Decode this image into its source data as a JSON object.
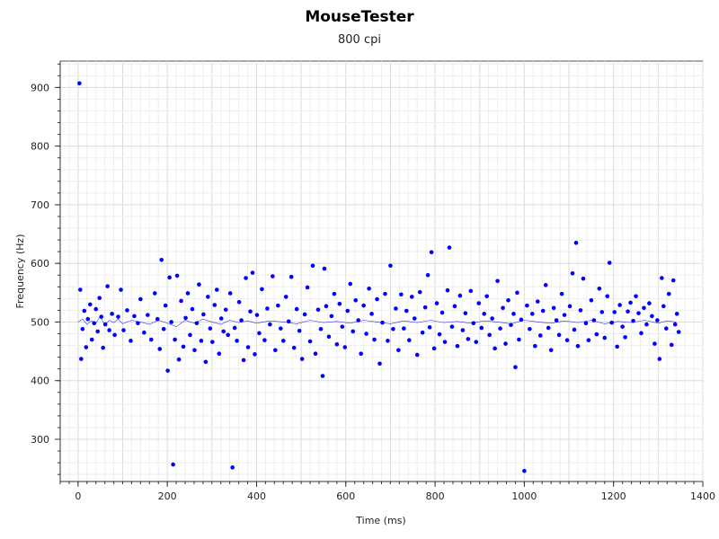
{
  "chart_data": {
    "type": "scatter",
    "title": "MouseTester",
    "subtitle": "800 cpi",
    "xlabel": "Time (ms)",
    "ylabel": "Frequency (Hz)",
    "xlim": [
      -40,
      1400
    ],
    "ylim": [
      228,
      945
    ],
    "xticks": [
      0,
      200,
      400,
      600,
      800,
      1000,
      1200,
      1400
    ],
    "yticks": [
      300,
      400,
      500,
      600,
      700,
      800,
      900
    ],
    "grid": true,
    "legend": "none",
    "series": [
      {
        "color": "#0000ff",
        "marker": "dot",
        "points": [
          [
            3,
            907
          ],
          [
            5,
            555
          ],
          [
            7,
            437
          ],
          [
            10,
            488
          ],
          [
            14,
            519
          ],
          [
            18,
            457
          ],
          [
            22,
            505
          ],
          [
            27,
            530
          ],
          [
            31,
            470
          ],
          [
            36,
            498
          ],
          [
            40,
            522
          ],
          [
            44,
            484
          ],
          [
            48,
            541
          ],
          [
            52,
            509
          ],
          [
            56,
            456
          ],
          [
            61,
            496
          ],
          [
            66,
            561
          ],
          [
            70,
            486
          ],
          [
            76,
            514
          ],
          [
            82,
            478
          ],
          [
            90,
            509
          ],
          [
            96,
            555
          ],
          [
            102,
            486
          ],
          [
            110,
            520
          ],
          [
            118,
            468
          ],
          [
            126,
            510
          ],
          [
            134,
            498
          ],
          [
            140,
            539
          ],
          [
            148,
            482
          ],
          [
            156,
            512
          ],
          [
            164,
            470
          ],
          [
            172,
            549
          ],
          [
            178,
            505
          ],
          [
            183,
            454
          ],
          [
            187,
            606
          ],
          [
            192,
            488
          ],
          [
            196,
            528
          ],
          [
            201,
            417
          ],
          [
            205,
            576
          ],
          [
            209,
            500
          ],
          [
            213,
            257
          ],
          [
            217,
            470
          ],
          [
            222,
            579
          ],
          [
            226,
            436
          ],
          [
            231,
            536
          ],
          [
            236,
            458
          ],
          [
            241,
            507
          ],
          [
            246,
            549
          ],
          [
            251,
            478
          ],
          [
            256,
            522
          ],
          [
            261,
            452
          ],
          [
            266,
            498
          ],
          [
            271,
            564
          ],
          [
            276,
            468
          ],
          [
            281,
            513
          ],
          [
            286,
            432
          ],
          [
            291,
            543
          ],
          [
            296,
            489
          ],
          [
            301,
            466
          ],
          [
            306,
            529
          ],
          [
            311,
            555
          ],
          [
            316,
            446
          ],
          [
            321,
            506
          ],
          [
            326,
            484
          ],
          [
            331,
            521
          ],
          [
            336,
            478
          ],
          [
            341,
            549
          ],
          [
            346,
            252
          ],
          [
            351,
            490
          ],
          [
            356,
            468
          ],
          [
            361,
            534
          ],
          [
            366,
            503
          ],
          [
            371,
            435
          ],
          [
            376,
            575
          ],
          [
            381,
            457
          ],
          [
            386,
            518
          ],
          [
            391,
            584
          ],
          [
            396,
            445
          ],
          [
            401,
            512
          ],
          [
            406,
            481
          ],
          [
            412,
            556
          ],
          [
            418,
            469
          ],
          [
            424,
            523
          ],
          [
            430,
            496
          ],
          [
            436,
            578
          ],
          [
            442,
            452
          ],
          [
            448,
            528
          ],
          [
            454,
            489
          ],
          [
            460,
            468
          ],
          [
            466,
            543
          ],
          [
            472,
            501
          ],
          [
            478,
            577
          ],
          [
            484,
            456
          ],
          [
            490,
            522
          ],
          [
            496,
            485
          ],
          [
            502,
            437
          ],
          [
            508,
            513
          ],
          [
            514,
            559
          ],
          [
            520,
            467
          ],
          [
            526,
            596
          ],
          [
            532,
            446
          ],
          [
            538,
            521
          ],
          [
            544,
            488
          ],
          [
            548,
            408
          ],
          [
            552,
            591
          ],
          [
            556,
            527
          ],
          [
            562,
            475
          ],
          [
            568,
            510
          ],
          [
            574,
            548
          ],
          [
            580,
            462
          ],
          [
            586,
            531
          ],
          [
            592,
            492
          ],
          [
            598,
            457
          ],
          [
            604,
            519
          ],
          [
            610,
            565
          ],
          [
            616,
            484
          ],
          [
            622,
            537
          ],
          [
            628,
            503
          ],
          [
            634,
            446
          ],
          [
            640,
            528
          ],
          [
            646,
            480
          ],
          [
            652,
            557
          ],
          [
            658,
            514
          ],
          [
            664,
            470
          ],
          [
            670,
            539
          ],
          [
            676,
            429
          ],
          [
            682,
            499
          ],
          [
            688,
            548
          ],
          [
            694,
            468
          ],
          [
            700,
            596
          ],
          [
            706,
            488
          ],
          [
            712,
            523
          ],
          [
            718,
            452
          ],
          [
            724,
            547
          ],
          [
            730,
            489
          ],
          [
            736,
            519
          ],
          [
            742,
            469
          ],
          [
            748,
            543
          ],
          [
            754,
            506
          ],
          [
            760,
            444
          ],
          [
            766,
            551
          ],
          [
            772,
            482
          ],
          [
            778,
            525
          ],
          [
            784,
            580
          ],
          [
            788,
            491
          ],
          [
            792,
            619
          ],
          [
            798,
            455
          ],
          [
            804,
            532
          ],
          [
            810,
            479
          ],
          [
            816,
            516
          ],
          [
            822,
            466
          ],
          [
            828,
            554
          ],
          [
            832,
            627
          ],
          [
            838,
            492
          ],
          [
            844,
            527
          ],
          [
            850,
            459
          ],
          [
            856,
            545
          ],
          [
            862,
            486
          ],
          [
            868,
            515
          ],
          [
            874,
            471
          ],
          [
            880,
            553
          ],
          [
            886,
            498
          ],
          [
            892,
            466
          ],
          [
            898,
            532
          ],
          [
            904,
            490
          ],
          [
            910,
            514
          ],
          [
            916,
            544
          ],
          [
            922,
            478
          ],
          [
            928,
            506
          ],
          [
            934,
            455
          ],
          [
            940,
            570
          ],
          [
            946,
            489
          ],
          [
            952,
            524
          ],
          [
            958,
            463
          ],
          [
            964,
            537
          ],
          [
            970,
            495
          ],
          [
            976,
            514
          ],
          [
            980,
            423
          ],
          [
            984,
            550
          ],
          [
            988,
            470
          ],
          [
            993,
            504
          ],
          [
            1000,
            246
          ],
          [
            1006,
            528
          ],
          [
            1012,
            488
          ],
          [
            1018,
            514
          ],
          [
            1024,
            459
          ],
          [
            1030,
            535
          ],
          [
            1036,
            477
          ],
          [
            1042,
            519
          ],
          [
            1048,
            563
          ],
          [
            1054,
            490
          ],
          [
            1060,
            452
          ],
          [
            1066,
            524
          ],
          [
            1072,
            503
          ],
          [
            1078,
            478
          ],
          [
            1084,
            548
          ],
          [
            1090,
            512
          ],
          [
            1096,
            469
          ],
          [
            1102,
            527
          ],
          [
            1108,
            583
          ],
          [
            1112,
            487
          ],
          [
            1116,
            635
          ],
          [
            1120,
            459
          ],
          [
            1126,
            520
          ],
          [
            1132,
            574
          ],
          [
            1138,
            498
          ],
          [
            1144,
            469
          ],
          [
            1150,
            537
          ],
          [
            1156,
            503
          ],
          [
            1162,
            479
          ],
          [
            1168,
            557
          ],
          [
            1174,
            517
          ],
          [
            1180,
            473
          ],
          [
            1186,
            544
          ],
          [
            1191,
            601
          ],
          [
            1196,
            499
          ],
          [
            1202,
            517
          ],
          [
            1208,
            458
          ],
          [
            1214,
            529
          ],
          [
            1220,
            492
          ],
          [
            1226,
            474
          ],
          [
            1232,
            518
          ],
          [
            1238,
            533
          ],
          [
            1244,
            502
          ],
          [
            1250,
            544
          ],
          [
            1256,
            515
          ],
          [
            1262,
            481
          ],
          [
            1268,
            524
          ],
          [
            1274,
            496
          ],
          [
            1280,
            532
          ],
          [
            1286,
            510
          ],
          [
            1292,
            463
          ],
          [
            1298,
            503
          ],
          [
            1303,
            437
          ],
          [
            1308,
            575
          ],
          [
            1312,
            527
          ],
          [
            1318,
            489
          ],
          [
            1324,
            548
          ],
          [
            1330,
            461
          ],
          [
            1334,
            571
          ],
          [
            1338,
            496
          ],
          [
            1342,
            514
          ],
          [
            1346,
            483
          ]
        ]
      },
      {
        "color": "#0000ff",
        "marker": "thin-line",
        "x": [
          0,
          10,
          20,
          30,
          40,
          50,
          60,
          70,
          80,
          90,
          100,
          120,
          140,
          160,
          180,
          200,
          220,
          240,
          260,
          280,
          300,
          320,
          340,
          360,
          380,
          400,
          430,
          460,
          490,
          520,
          550,
          580,
          610,
          640,
          670,
          700,
          730,
          760,
          790,
          820,
          850,
          880,
          910,
          940,
          970,
          1000,
          1030,
          1060,
          1090,
          1120,
          1150,
          1180,
          1210,
          1240,
          1270,
          1300,
          1320,
          1340
        ],
        "y": [
          500,
          505,
          496,
          502,
          498,
          510,
          494,
          503,
          499,
          505,
          497,
          503,
          500,
          496,
          503,
          498,
          492,
          503,
          498,
          505,
          500,
          496,
          503,
          499,
          502,
          498,
          502,
          500,
          497,
          503,
          499,
          501,
          498,
          503,
          500,
          497,
          502,
          499,
          503,
          499,
          501,
          498,
          502,
          500,
          497,
          503,
          500,
          498,
          502,
          499,
          503,
          497,
          501,
          499,
          503,
          498,
          502,
          500
        ]
      }
    ]
  }
}
